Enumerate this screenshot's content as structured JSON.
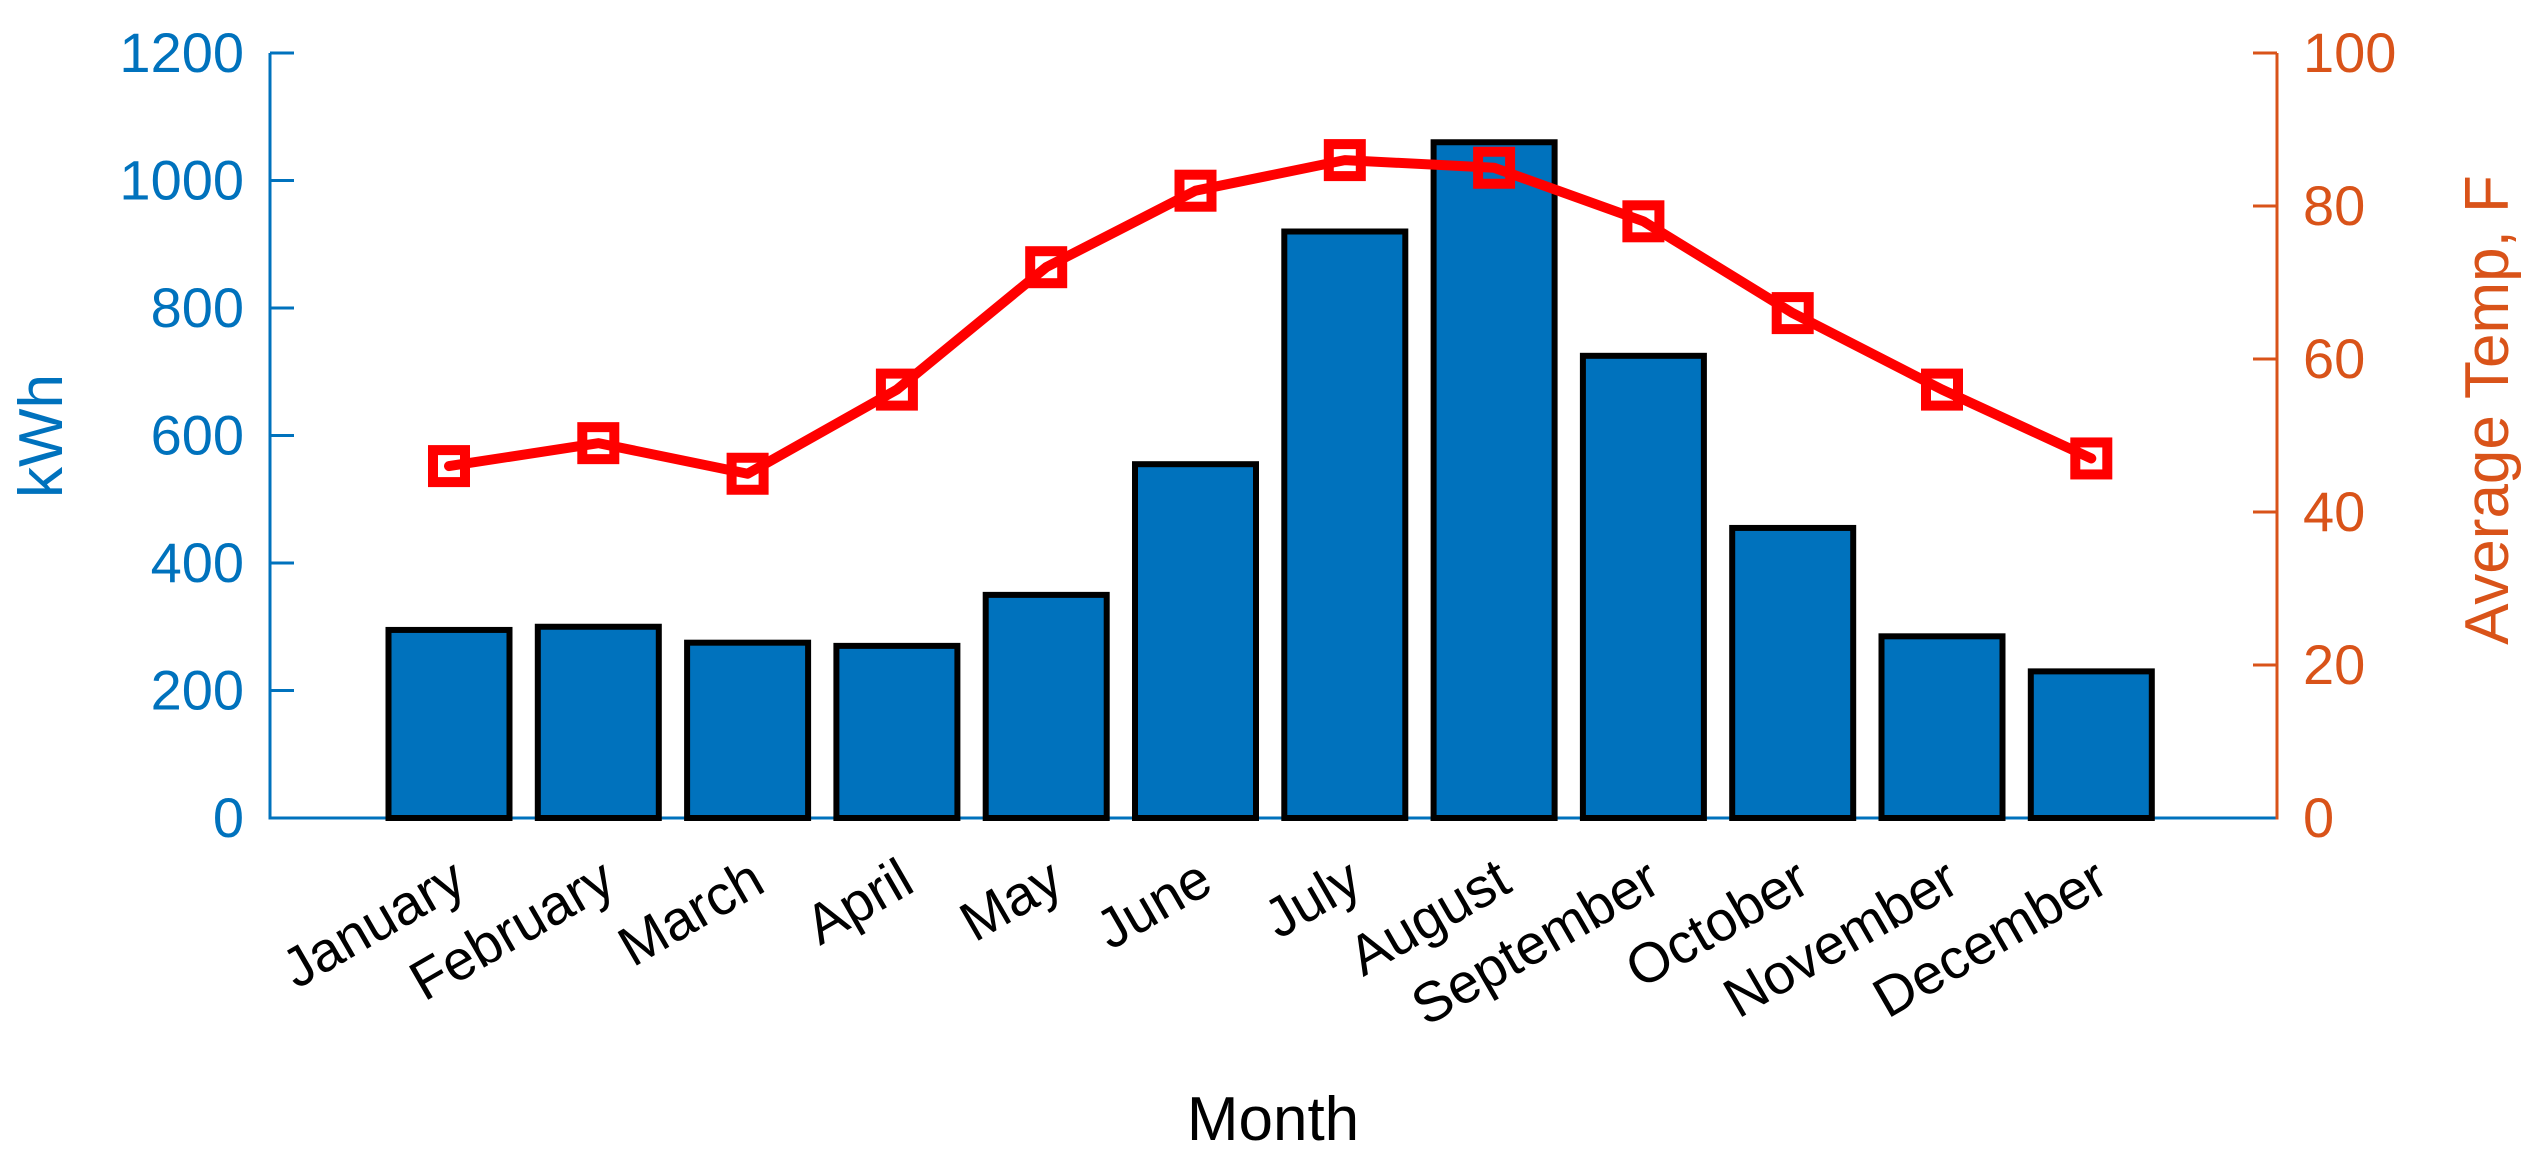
{
  "chart_data": {
    "type": "combo",
    "title": "",
    "categories": [
      "January",
      "February",
      "March",
      "April",
      "May",
      "June",
      "July",
      "August",
      "September",
      "October",
      "November",
      "December"
    ],
    "series": [
      {
        "name": "kWh",
        "type": "bar",
        "axis": "left",
        "values": [
          295,
          300,
          275,
          270,
          350,
          555,
          920,
          1060,
          725,
          455,
          285,
          230
        ],
        "fill_color": "#0072BD",
        "edge_color": "#000000"
      },
      {
        "name": "Average Temp, F",
        "type": "line",
        "axis": "right",
        "values": [
          46,
          49,
          45,
          56,
          72,
          82,
          86,
          85,
          78,
          66,
          56,
          47
        ],
        "line_color": "#FF0000",
        "marker": "hollow-square"
      }
    ],
    "left_axis": {
      "label": "kWh",
      "min": 0,
      "max": 1200,
      "tick_step": 200,
      "color": "#0072BD"
    },
    "right_axis": {
      "label": "Average Temp, F",
      "min": 0,
      "max": 100,
      "tick_step": 20,
      "color": "#D95319"
    },
    "x_axis": {
      "label": "Month",
      "tick_rotation_deg": -30,
      "tick_color": "#000000"
    },
    "legend": "none",
    "grid": "off",
    "background": "#ffffff"
  }
}
